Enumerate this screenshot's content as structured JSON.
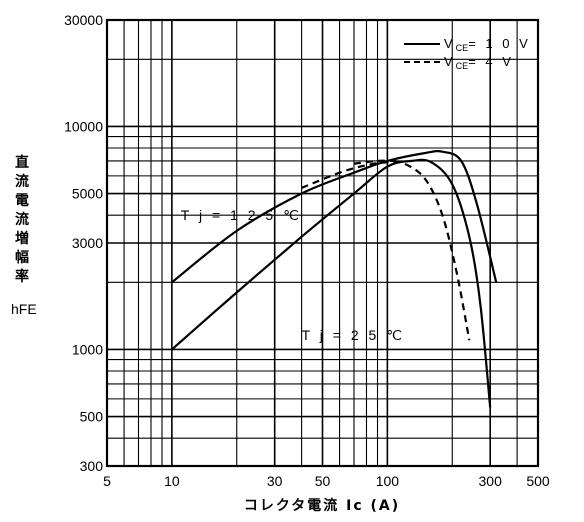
{
  "chart_data": {
    "type": "line",
    "x_scale": "log",
    "y_scale": "log",
    "xlim": [
      5,
      500
    ],
    "ylim": [
      300,
      30000
    ],
    "x_ticks": [
      5,
      10,
      30,
      50,
      100,
      300,
      500
    ],
    "x_tick_labels": [
      "5",
      "10",
      "30",
      "50",
      "100",
      "300",
      "500"
    ],
    "y_ticks": [
      300,
      500,
      1000,
      3000,
      5000,
      10000,
      30000
    ],
    "y_tick_labels": [
      "300",
      "500",
      "1000",
      "3000",
      "5000",
      "10000",
      "30000"
    ],
    "xlabel": "コレクタ電流 Ic (A)",
    "ylabel_chars": [
      "直",
      "流",
      "電",
      "流",
      "増",
      "幅",
      "率"
    ],
    "ylabel_symbol": "hFE",
    "grid": true,
    "legend_position": "top-right",
    "legend": [
      {
        "label_main": "V",
        "label_sub": "CE",
        "label_value": "= 1 0 V",
        "style": "solid"
      },
      {
        "label_main": "V",
        "label_sub": "CE",
        "label_value": "=   4 V",
        "style": "dashed"
      }
    ],
    "annotations": [
      {
        "text": "T j = 1 2 5 ℃",
        "x": 11,
        "y": 3800
      },
      {
        "text": "T j = 2 5 ℃",
        "x": 40,
        "y": 1100
      }
    ],
    "series": [
      {
        "style": "solid",
        "x": [
          10,
          20,
          40,
          70,
          100,
          150,
          180,
          220,
          260,
          320
        ],
        "y": [
          2000,
          3400,
          5000,
          6200,
          7000,
          7600,
          7700,
          7000,
          4500,
          2000
        ]
      },
      {
        "style": "dashed",
        "x": [
          40,
          60,
          80,
          100,
          120,
          150,
          180,
          210,
          240
        ],
        "y": [
          5300,
          6200,
          6700,
          6900,
          6800,
          5800,
          4000,
          2200,
          1100
        ]
      },
      {
        "style": "solid",
        "x": [
          10,
          20,
          40,
          70,
          100,
          130,
          160,
          200,
          240,
          270,
          300
        ],
        "y": [
          1000,
          1800,
          3200,
          5000,
          6600,
          7000,
          6900,
          5500,
          3200,
          1600,
          550
        ]
      },
      {
        "style": "dashed",
        "x": [
          70,
          90,
          110
        ],
        "y": [
          6800,
          7000,
          7000
        ]
      }
    ]
  }
}
